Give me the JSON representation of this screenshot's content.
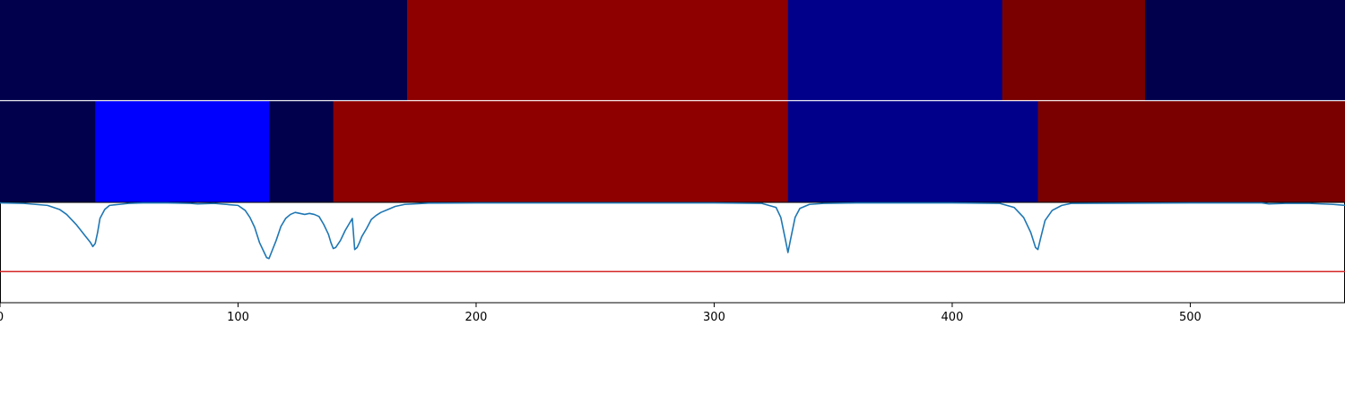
{
  "chart_data": [
    {
      "type": "heatmap",
      "xlim": [
        0,
        565
      ],
      "colormap": "seismic",
      "segments": [
        {
          "start": 0,
          "end": 171,
          "color": "#00004c"
        },
        {
          "start": 171,
          "end": 331,
          "color": "#8e0000"
        },
        {
          "start": 331,
          "end": 421,
          "color": "#00008a"
        },
        {
          "start": 421,
          "end": 481,
          "color": "#7a0000"
        },
        {
          "start": 481,
          "end": 565,
          "color": "#00004c"
        }
      ]
    },
    {
      "type": "heatmap",
      "xlim": [
        0,
        565
      ],
      "colormap": "seismic",
      "segments": [
        {
          "start": 0,
          "end": 40,
          "color": "#00004c"
        },
        {
          "start": 40,
          "end": 113,
          "color": "#0000ff"
        },
        {
          "start": 113,
          "end": 140,
          "color": "#00004c"
        },
        {
          "start": 140,
          "end": 331,
          "color": "#8e0000"
        },
        {
          "start": 331,
          "end": 436,
          "color": "#00008a"
        },
        {
          "start": 436,
          "end": 565,
          "color": "#7a0000"
        }
      ]
    },
    {
      "type": "line",
      "xlim": [
        0,
        565
      ],
      "ylim": [
        0,
        1
      ],
      "xticks": [
        0,
        100,
        200,
        300,
        400,
        500
      ],
      "grid": false,
      "series": [
        {
          "color": "#1f77b4",
          "x": [
            0,
            10,
            20,
            25,
            28,
            30,
            32,
            34,
            36,
            38,
            39,
            40,
            41,
            42,
            44,
            46,
            50,
            54,
            60,
            70,
            80,
            83,
            90,
            100,
            103,
            105,
            107,
            109,
            111,
            112,
            113,
            114,
            116,
            118,
            120,
            122,
            124,
            126,
            128,
            130,
            132,
            134,
            136,
            138,
            139,
            140,
            141,
            143,
            145,
            147,
            148,
            149,
            150,
            151,
            152,
            154,
            156,
            158,
            160,
            163,
            166,
            170,
            180,
            200,
            250,
            300,
            320,
            326,
            328,
            330,
            331,
            332,
            334,
            336,
            340,
            346,
            360,
            400,
            420,
            426,
            430,
            433,
            435,
            436,
            437,
            439,
            442,
            446,
            450,
            500,
            530,
            533,
            540,
            550,
            560,
            565
          ],
          "y": [
            0.995,
            0.99,
            0.97,
            0.93,
            0.88,
            0.83,
            0.78,
            0.72,
            0.66,
            0.6,
            0.56,
            0.59,
            0.7,
            0.84,
            0.93,
            0.97,
            0.98,
            0.99,
            0.995,
            0.995,
            0.99,
            0.985,
            0.99,
            0.97,
            0.92,
            0.85,
            0.75,
            0.6,
            0.5,
            0.45,
            0.44,
            0.5,
            0.62,
            0.76,
            0.84,
            0.88,
            0.9,
            0.89,
            0.88,
            0.89,
            0.88,
            0.86,
            0.78,
            0.68,
            0.6,
            0.54,
            0.55,
            0.62,
            0.72,
            0.8,
            0.84,
            0.53,
            0.55,
            0.6,
            0.66,
            0.74,
            0.83,
            0.87,
            0.9,
            0.93,
            0.96,
            0.98,
            0.993,
            0.995,
            0.995,
            0.995,
            0.99,
            0.95,
            0.85,
            0.62,
            0.5,
            0.62,
            0.85,
            0.94,
            0.98,
            0.99,
            0.995,
            0.995,
            0.99,
            0.95,
            0.85,
            0.7,
            0.55,
            0.53,
            0.63,
            0.82,
            0.92,
            0.97,
            0.99,
            0.995,
            0.995,
            0.985,
            0.99,
            0.99,
            0.98,
            0.97
          ]
        },
        {
          "color": "#d62728",
          "x": [
            0,
            565
          ],
          "y": [
            0.31,
            0.31
          ]
        }
      ]
    }
  ]
}
